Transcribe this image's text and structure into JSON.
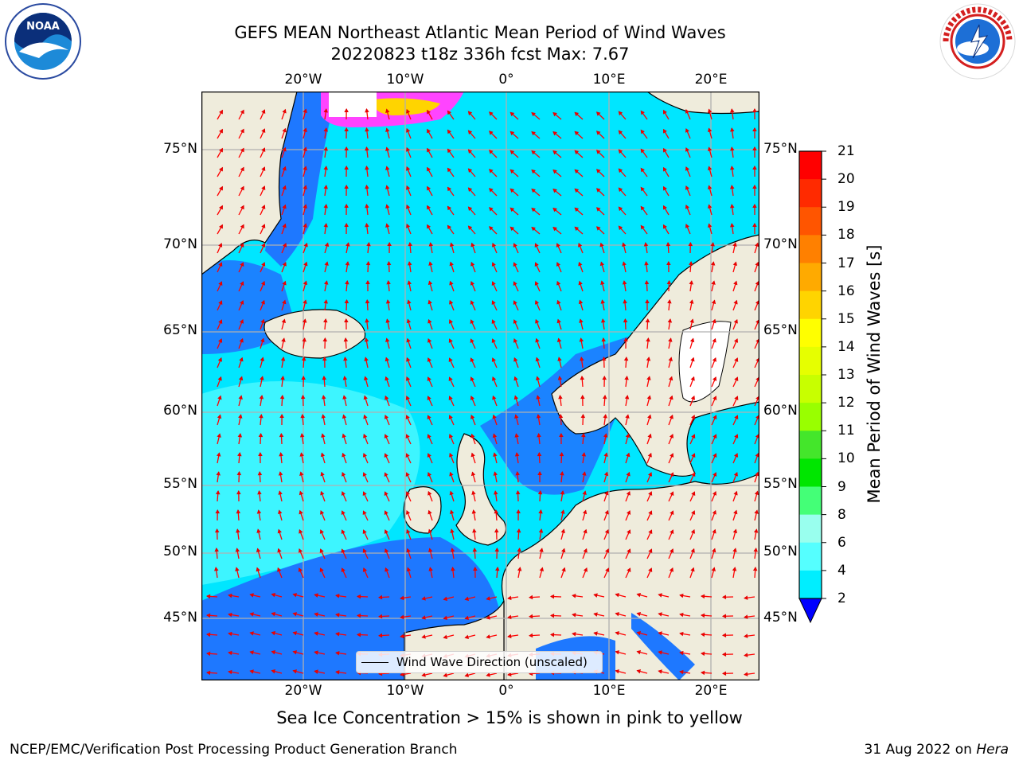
{
  "header": {
    "title": "GEFS MEAN Northeast Atlantic Mean Period of Wind Waves",
    "subtitle": "20220823 t18z 336h fcst   Max: 7.67"
  },
  "logos": {
    "left": "noaa-logo",
    "right": "nws-logo"
  },
  "map": {
    "lat_labels": [
      "75°N",
      "70°N",
      "65°N",
      "60°N",
      "55°N",
      "50°N",
      "45°N"
    ],
    "lon_labels": [
      "20°W",
      "10°W",
      "0°",
      "10°E",
      "20°E"
    ],
    "legend_label": "Wind Wave Direction (unscaled)",
    "colors": {
      "land": "#efecdc",
      "ocean_low": "#1e78ff",
      "ocean_mid": "#00e6ff",
      "ocean_high": "#66ffff",
      "arrow": "#ff0000",
      "ice": "#ff44ff"
    }
  },
  "colorbar": {
    "label": "Mean Period of Wind Waves [s]",
    "ticks": [
      "21",
      "20",
      "19",
      "18",
      "17",
      "16",
      "15",
      "14",
      "13",
      "12",
      "11",
      "10",
      "9",
      "8",
      "6",
      "4",
      "2"
    ],
    "colors": [
      "#ff0000",
      "#ff2a00",
      "#ff5500",
      "#ff8000",
      "#ffaa00",
      "#ffd400",
      "#ffff00",
      "#e6ff00",
      "#c8ff00",
      "#99ff00",
      "#44e62b",
      "#00e600",
      "#44ff77",
      "#99ffee",
      "#55ffff",
      "#00eeff",
      "#1e78ff"
    ],
    "under_color": "#0000ff"
  },
  "caption": "Sea Ice Concentration > 15% is shown in pink to yellow",
  "footer": {
    "left": "NCEP/EMC/Verification Post Processing Product Generation Branch",
    "date": "31 Aug 2022 on ",
    "machine": "Hera"
  }
}
